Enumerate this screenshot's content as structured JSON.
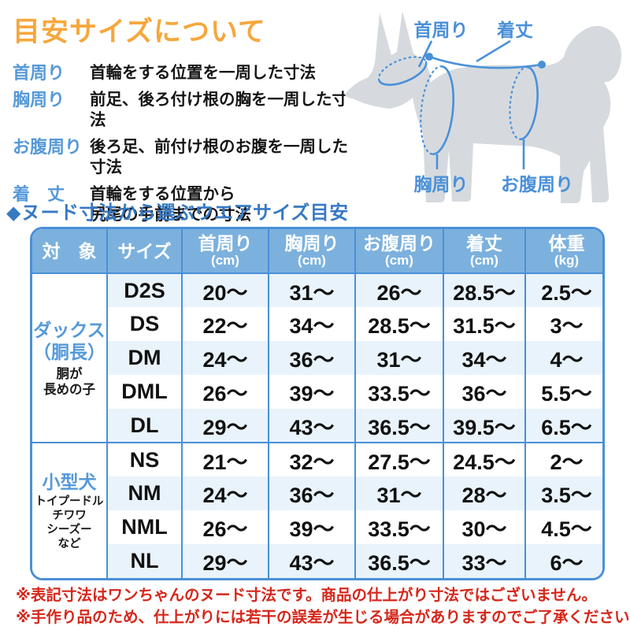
{
  "title": "目安サイズについて",
  "definitions": [
    {
      "label": "首周り",
      "text": "首輪をする位置を一周した寸法"
    },
    {
      "label": "胸周り",
      "text": "前足、後ろ付け根の胸を一周した寸法"
    },
    {
      "label": "お腹周り",
      "text": "後ろ足、前付け根のお腹を一周した寸法"
    },
    {
      "label": "着　丈",
      "text": "首輪をする位置から\n尻尾の手前までの寸法"
    }
  ],
  "diagram": {
    "neck_label": "首周り",
    "length_label": "着丈",
    "chest_label": "胸周り",
    "belly_label": "お腹周り"
  },
  "section_title": "◆ヌード寸法から選ぶウエアサイズ目安",
  "table": {
    "headers": [
      {
        "label": "対　象",
        "unit": ""
      },
      {
        "label": "サイズ",
        "unit": ""
      },
      {
        "label": "首周り",
        "unit": "(cm)"
      },
      {
        "label": "胸周り",
        "unit": "(cm)"
      },
      {
        "label": "お腹周り",
        "unit": "(cm)"
      },
      {
        "label": "着丈",
        "unit": "(cm)"
      },
      {
        "label": "体重",
        "unit": "(kg)"
      }
    ],
    "groups": [
      {
        "target_main": "ダックス\n（胴長）",
        "target_sub": "胴が\n長めの子",
        "rows": [
          {
            "size": "D2S",
            "values": [
              "20～",
              "31～",
              "26～",
              "28.5～",
              "2.5～"
            ]
          },
          {
            "size": "DS",
            "values": [
              "22～",
              "34～",
              "28.5～",
              "31.5～",
              "3～"
            ]
          },
          {
            "size": "DM",
            "values": [
              "24～",
              "36～",
              "31～",
              "34～",
              "4～"
            ]
          },
          {
            "size": "DML",
            "values": [
              "26～",
              "39～",
              "33.5～",
              "36～",
              "5.5～"
            ]
          },
          {
            "size": "DL",
            "values": [
              "29～",
              "43～",
              "36.5～",
              "39.5～",
              "6.5～"
            ]
          }
        ]
      },
      {
        "target_main": "小型犬",
        "target_sub": "トイプードル\nチワワ\nシーズー\nなど",
        "rows": [
          {
            "size": "NS",
            "values": [
              "21～",
              "32～",
              "27.5～",
              "24.5～",
              "2～"
            ]
          },
          {
            "size": "NM",
            "values": [
              "24～",
              "36～",
              "31～",
              "28～",
              "3.5～"
            ]
          },
          {
            "size": "NML",
            "values": [
              "26～",
              "39～",
              "33.5～",
              "30～",
              "4.5～"
            ]
          },
          {
            "size": "NL",
            "values": [
              "29～",
              "43～",
              "36.5～",
              "33～",
              "6～"
            ]
          }
        ]
      }
    ]
  },
  "notes": [
    "※表記寸法はワンちゃんのヌード寸法です。商品の仕上がり寸法ではございません。",
    "※手作り品のため、仕上がりには若干の誤差が生じる場合がありますのでご了承ください。"
  ],
  "colors": {
    "title_orange": "#f6a73c",
    "label_blue": "#5599d8",
    "section_blue": "#3779c3",
    "table_border": "#4a90d8",
    "header_bg": "#7cb1de",
    "stripe_bg": "#e9f3fb",
    "note_red": "#d6261a",
    "dog_gray": "#d6dade"
  }
}
